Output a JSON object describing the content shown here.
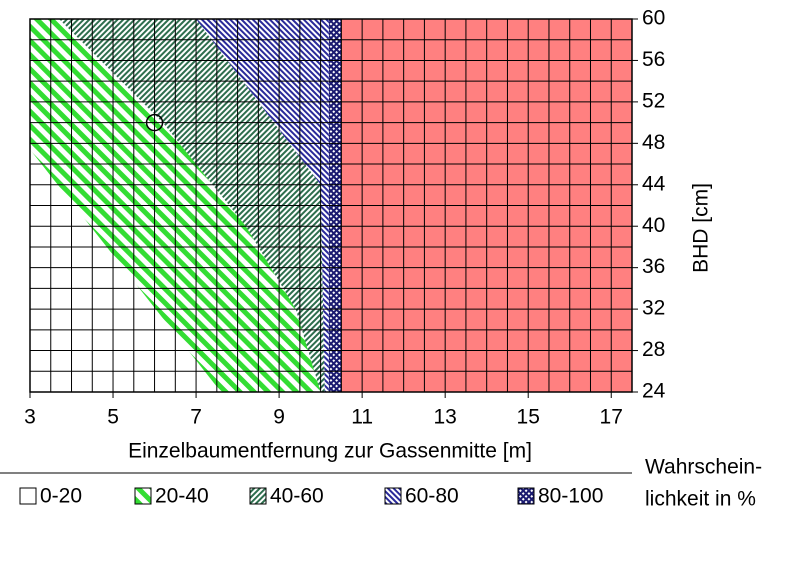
{
  "chart_data": {
    "type": "region",
    "x_label": "Einzelbaumentfernung zur Gassenmitte [m]",
    "y_label": "BHD [cm]",
    "legend_title": [
      "Wahrschein-",
      "lichkeit in %"
    ],
    "xlim": [
      3,
      17.5
    ],
    "ylim": [
      24,
      60
    ],
    "xticks": [
      3,
      5,
      7,
      9,
      11,
      13,
      15,
      17
    ],
    "yticks": [
      24,
      28,
      32,
      36,
      40,
      44,
      48,
      52,
      56,
      60
    ],
    "xgrid": [
      3,
      3.5,
      4,
      4.5,
      5,
      5.5,
      6,
      6.5,
      7,
      7.5,
      8,
      8.5,
      9,
      9.5,
      10,
      10.5,
      11,
      11.5,
      12,
      12.5,
      13,
      13.5,
      14,
      14.5,
      15,
      15.5,
      16,
      16.5,
      17,
      17.5
    ],
    "ygrid": [
      24,
      26,
      28,
      30,
      32,
      34,
      36,
      38,
      40,
      42,
      44,
      46,
      48,
      50,
      52,
      54,
      56,
      58,
      60
    ],
    "series": [
      {
        "name": "0-20",
        "color": "#ffffff",
        "pattern": "none",
        "x": [
          3,
          7.6,
          3
        ],
        "y": [
          24,
          24,
          47.4
        ]
      },
      {
        "name": "20-40",
        "color": "#33dd33",
        "pattern": "wide-back",
        "x": [
          3,
          3,
          3.7,
          6.2,
          8.2,
          9.4,
          10.0,
          7.6
        ],
        "y": [
          47.4,
          60,
          60,
          50,
          40,
          32,
          24,
          24
        ]
      },
      {
        "name": "40-60",
        "color": "#2e6e4e",
        "pattern": "fine-fwd",
        "x": [
          3.7,
          7.0,
          10.0,
          10.1,
          10.0,
          9.4,
          8.2,
          6.2
        ],
        "y": [
          60,
          60,
          44,
          24,
          24,
          32,
          40,
          50
        ]
      },
      {
        "name": "60-80",
        "color": "#2a2a9a",
        "pattern": "fine-back",
        "x": [
          7.0,
          10.2,
          10.2,
          10.1,
          10.0
        ],
        "y": [
          60,
          60,
          24,
          24,
          44
        ]
      },
      {
        "name": "80-100",
        "color": "#1a1a70",
        "pattern": "cross",
        "x": [
          10.2,
          10.5,
          10.5,
          10.2
        ],
        "y": [
          60,
          60,
          24,
          24
        ]
      },
      {
        "color": "#ff8080",
        "pattern": "solid",
        "x": [
          10.5,
          17.5,
          17.5,
          10.5
        ],
        "y": [
          60,
          60,
          24,
          24
        ]
      }
    ],
    "marker": {
      "x": 6,
      "y": 50
    }
  }
}
